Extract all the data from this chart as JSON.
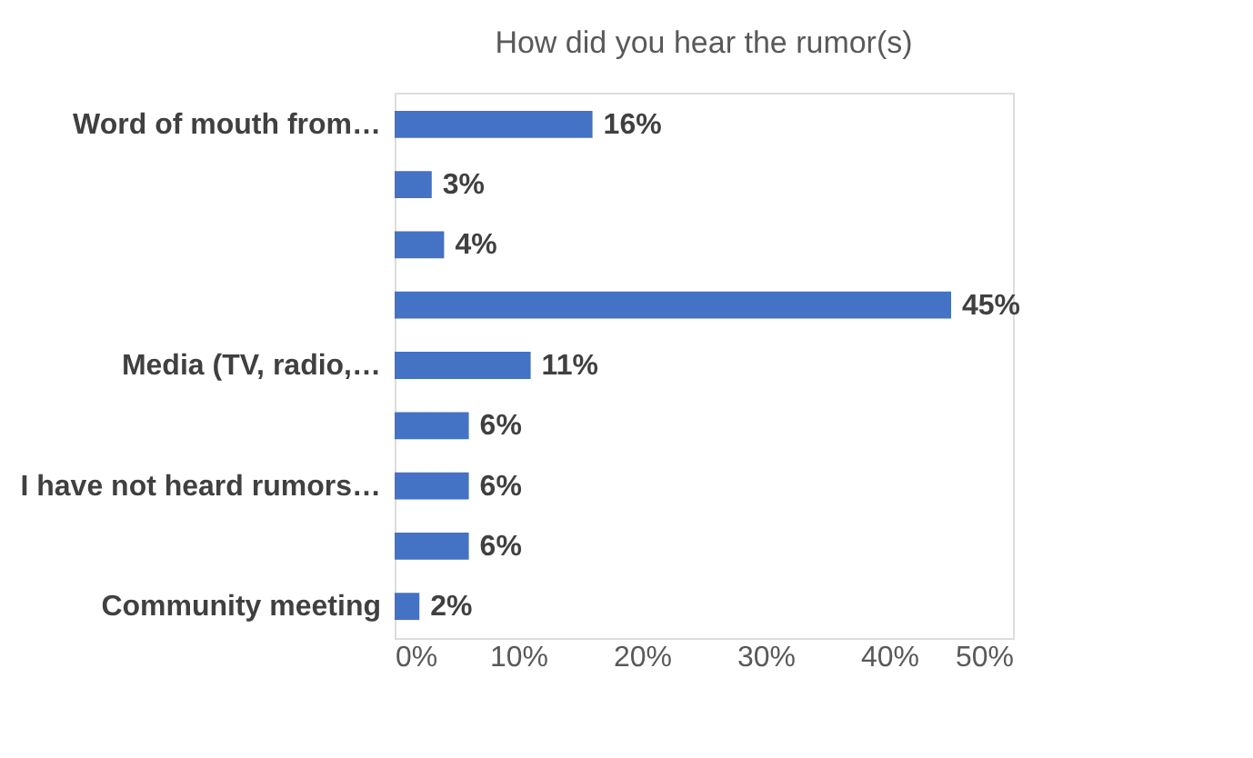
{
  "chart_data": {
    "type": "bar",
    "orientation": "horizontal",
    "title": "How did you hear the rumor(s)",
    "categories": [
      "Word of mouth from…",
      null,
      null,
      null,
      "Media (TV, radio,…",
      null,
      "I have not heard rumors…",
      null,
      "Community meeting"
    ],
    "values": [
      16,
      3,
      4,
      45,
      11,
      6,
      6,
      6,
      2
    ],
    "value_labels": [
      "16%",
      "3%",
      "4%",
      "45%",
      "11%",
      "6%",
      "6%",
      "6%",
      "2%"
    ],
    "color": "#4472c4",
    "xlim": [
      0,
      50
    ],
    "xticks": [
      {
        "value": 0,
        "label": "0%"
      },
      {
        "value": 10,
        "label": "10%"
      },
      {
        "value": 20,
        "label": "20%"
      },
      {
        "value": 30,
        "label": "30%"
      },
      {
        "value": 40,
        "label": "40%"
      },
      {
        "value": 50,
        "label": "50%"
      }
    ],
    "grid": false
  }
}
